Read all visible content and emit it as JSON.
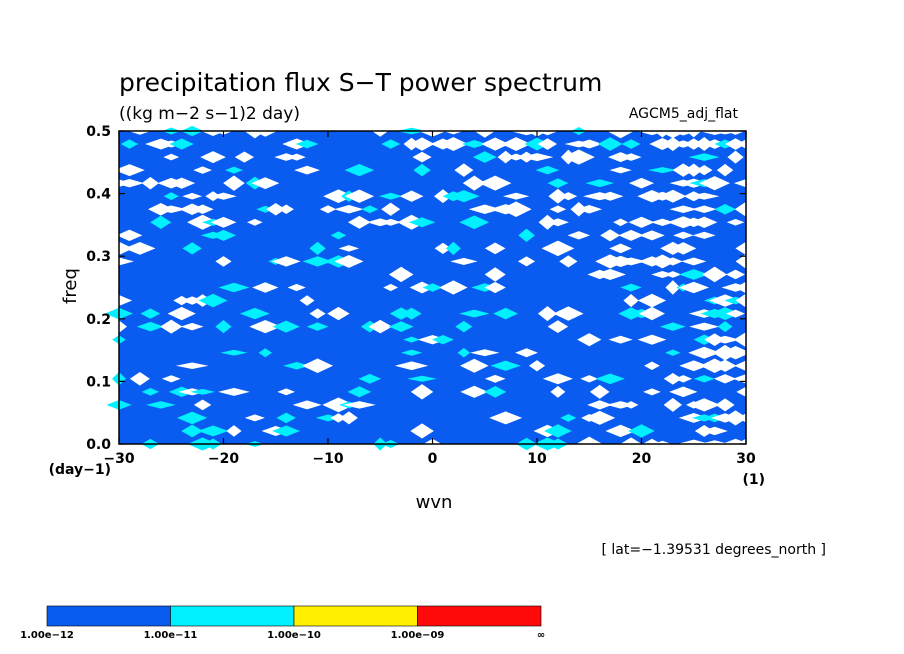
{
  "chart_data": {
    "type": "heatmap",
    "title": "precipitation flux S−T power spectrum",
    "subtitle": "((kg m−2 s−1)2 day)",
    "model_label": "AGCM5_adj_flat",
    "xlabel": "wvn",
    "ylabel": "freq",
    "x_unit": "(1)",
    "y_unit": "(day−1)",
    "xlim": [
      -30,
      30
    ],
    "ylim": [
      0.0,
      0.5
    ],
    "x_ticks": [
      "−30",
      "−20",
      "−10",
      "0",
      "10",
      "20",
      "30"
    ],
    "y_ticks": [
      "0.0",
      "0.1",
      "0.2",
      "0.3",
      "0.4",
      "0.5"
    ],
    "annotation": "[ lat=−1.39531 degrees_north ]",
    "colorbar": {
      "levels": [
        "1.00e−12",
        "1.00e−11",
        "1.00e−10",
        "1.00e−09",
        "∞"
      ],
      "colors": [
        "#0a5cf0",
        "#00f0ff",
        "#fff000",
        "#ff0a0a"
      ]
    },
    "background_color": "#ffffff"
  }
}
